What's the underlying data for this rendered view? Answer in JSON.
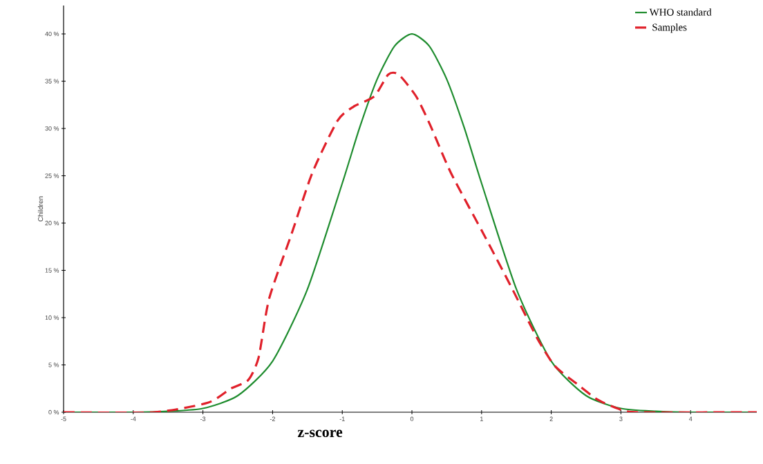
{
  "chart_data": {
    "type": "line",
    "xlabel": "z-score",
    "ylabel": "Children",
    "xlim": [
      -5,
      4.95
    ],
    "ylim": [
      0,
      43
    ],
    "xticks": [
      -5,
      -4,
      -3,
      -2,
      -1,
      0,
      1,
      2,
      3,
      4
    ],
    "yticks": [
      {
        "value": 0,
        "label": "0 %"
      },
      {
        "value": 5,
        "label": "5 %"
      },
      {
        "value": 10,
        "label": "10 %"
      },
      {
        "value": 15,
        "label": "15 %"
      },
      {
        "value": 20,
        "label": "20 %"
      },
      {
        "value": 25,
        "label": "25 %"
      },
      {
        "value": 30,
        "label": "30 %"
      },
      {
        "value": 35,
        "label": "35 %"
      },
      {
        "value": 40,
        "label": "40 %"
      }
    ],
    "legend": "top right",
    "grid": false,
    "marker": "none",
    "series": [
      {
        "name": "WHO standard",
        "color": "#1e8c2e",
        "line_style": "solid",
        "x": [
          -5,
          -4,
          -3.5,
          -3,
          -2.5,
          -2,
          -1.5,
          -1,
          -0.75,
          -0.5,
          -0.25,
          0,
          0.25,
          0.5,
          0.75,
          1,
          1.5,
          2,
          2.5,
          3,
          3.5,
          4,
          4.95
        ],
        "values": [
          0,
          0,
          0.1,
          0.4,
          1.75,
          5.4,
          13,
          24.2,
          30.1,
          35.2,
          38.7,
          40,
          38.7,
          35.2,
          30.1,
          24.2,
          13,
          5.4,
          1.75,
          0.4,
          0.1,
          0,
          0
        ]
      },
      {
        "name": " Samples",
        "color": "#e0202a",
        "line_style": "dashed",
        "x": [
          -5,
          -3.7,
          -2.93,
          -2.6,
          -2.35,
          -2.2,
          -2.05,
          -1.73,
          -1.43,
          -1.07,
          -0.84,
          -0.54,
          -0.34,
          -0.19,
          0.06,
          0.26,
          0.56,
          1.06,
          1.45,
          1.8,
          2.05,
          2.35,
          2.65,
          2.95,
          3.25,
          4.95
        ],
        "values": [
          0,
          0,
          1,
          2.5,
          3.4,
          5.8,
          12,
          18.8,
          25.3,
          30.8,
          32.3,
          33.4,
          35.7,
          35.7,
          33.4,
          30.4,
          25.3,
          18.4,
          12.9,
          7.8,
          4.9,
          3.1,
          1.4,
          0.4,
          0,
          0
        ]
      }
    ]
  }
}
